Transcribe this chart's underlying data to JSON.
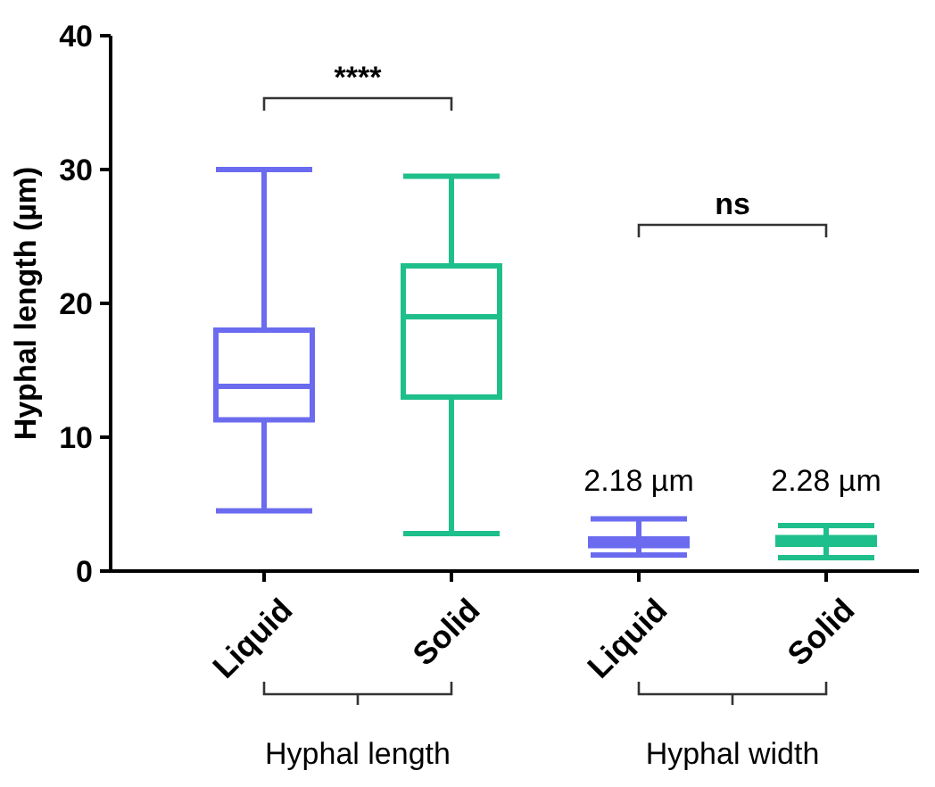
{
  "chart_data": {
    "type": "box",
    "ylabel": "Hyphal length (µm)",
    "categories": [
      "Liquid",
      "Solid",
      "Liquid",
      "Solid"
    ],
    "colors": [
      "#6b6bef",
      "#1fbf8c",
      "#6b6bef",
      "#1fbf8c"
    ],
    "boxes": [
      {
        "low": 4.5,
        "q1": 11.3,
        "median": 13.8,
        "q3": 18,
        "high": 30
      },
      {
        "low": 2.8,
        "q1": 13,
        "median": 19,
        "q3": 22.8,
        "high": 29.5
      },
      {
        "low": 1.2,
        "q1": 1.9,
        "median": 2.18,
        "q3": 2.4,
        "high": 3.9
      },
      {
        "low": 1,
        "q1": 2,
        "median": 2.28,
        "q3": 2.5,
        "high": 3.4
      }
    ],
    "ylim": [
      0,
      40
    ],
    "yticks": [
      0,
      10,
      20,
      30,
      40
    ],
    "grid": false,
    "annotations": [
      "****",
      "ns",
      "2.18 µm",
      "2.28 µm",
      "Hyphal length",
      "Hyphal width"
    ]
  }
}
